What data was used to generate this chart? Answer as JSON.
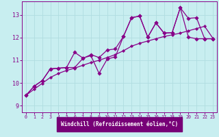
{
  "bg_color": "#c8eef0",
  "grid_color": "#b0dde0",
  "line_color": "#880088",
  "xlabel": "Windchill (Refroidissement éolien,°C)",
  "xlim": [
    -0.5,
    23.5
  ],
  "ylim": [
    8.7,
    13.6
  ],
  "xticks": [
    0,
    1,
    2,
    3,
    4,
    5,
    6,
    7,
    8,
    9,
    10,
    11,
    12,
    13,
    14,
    15,
    16,
    17,
    18,
    19,
    20,
    21,
    22,
    23
  ],
  "yticks": [
    9,
    10,
    11,
    12,
    13
  ],
  "line1_x": [
    0,
    1,
    2,
    3,
    4,
    5,
    6,
    7,
    8,
    9,
    10,
    11,
    12,
    13,
    14,
    15,
    16,
    17,
    18,
    19,
    20,
    21,
    22,
    23
  ],
  "line1_y": [
    9.45,
    9.85,
    10.1,
    10.62,
    10.65,
    10.68,
    11.35,
    11.1,
    11.2,
    10.42,
    11.05,
    11.15,
    12.05,
    12.88,
    12.95,
    12.02,
    12.65,
    12.2,
    12.22,
    13.32,
    12.85,
    12.88,
    11.95,
    11.95
  ],
  "line2_x": [
    0,
    1,
    2,
    3,
    4,
    5,
    6,
    7,
    8,
    9,
    10,
    11,
    12,
    13,
    14,
    15,
    16,
    17,
    18,
    19,
    20,
    21,
    22,
    23
  ],
  "line2_y": [
    9.45,
    9.85,
    10.1,
    10.62,
    10.65,
    10.68,
    10.68,
    11.08,
    11.25,
    11.12,
    11.45,
    11.5,
    12.05,
    12.88,
    12.95,
    12.02,
    12.65,
    12.2,
    12.22,
    13.32,
    12.02,
    11.95,
    11.95,
    11.95
  ],
  "line3_x": [
    0,
    1,
    2,
    3,
    4,
    5,
    6,
    7,
    8,
    9,
    10,
    11,
    12,
    13,
    14,
    15,
    16,
    17,
    18,
    19,
    20,
    21,
    22,
    23
  ],
  "line3_y": [
    9.45,
    9.72,
    9.98,
    10.24,
    10.42,
    10.55,
    10.65,
    10.78,
    10.9,
    11.0,
    11.12,
    11.25,
    11.42,
    11.62,
    11.75,
    11.85,
    11.95,
    12.05,
    12.12,
    12.2,
    12.3,
    12.4,
    12.5,
    11.98
  ],
  "xlabel_bg": "#770077",
  "xlabel_fg": "#ffffff"
}
